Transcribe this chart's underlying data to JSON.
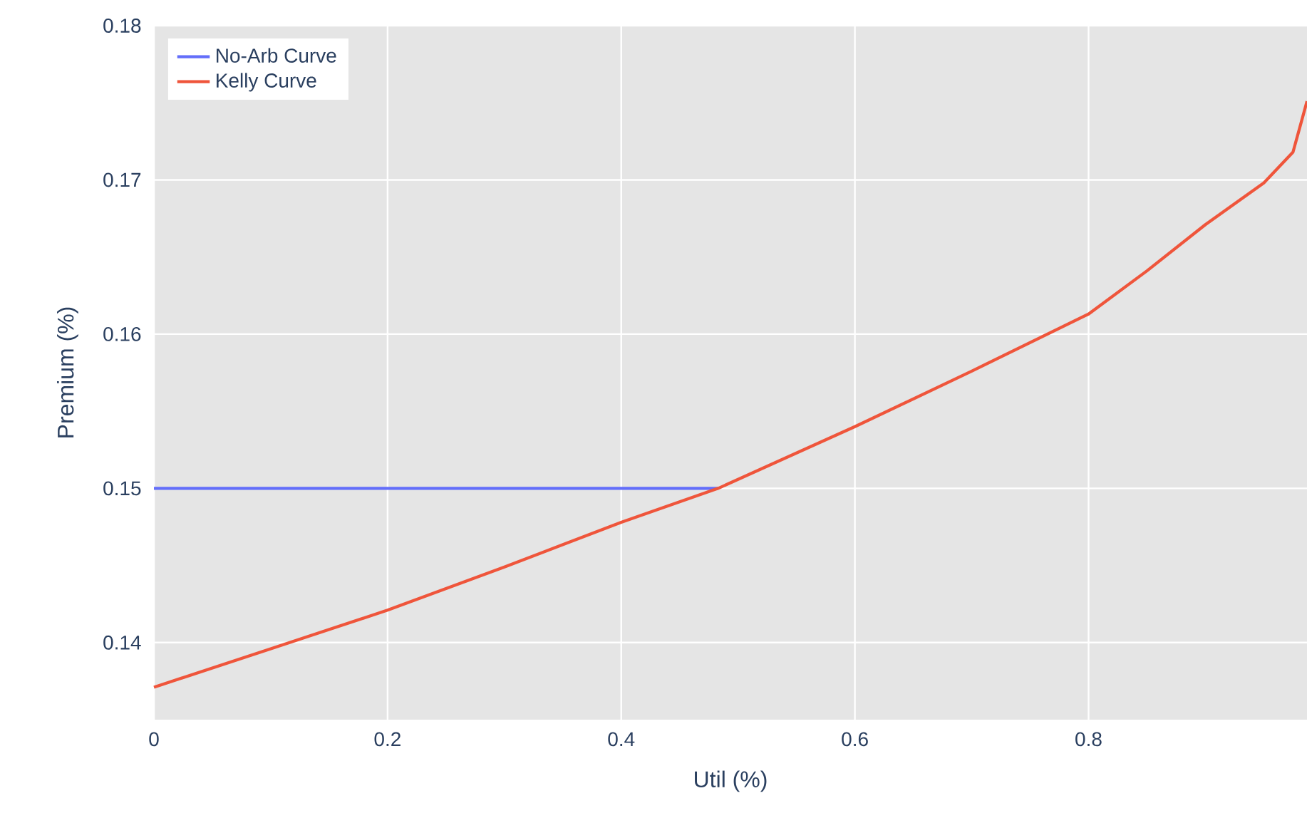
{
  "chart_data": {
    "type": "line",
    "xlabel": "Util (%)",
    "ylabel": "Premium (%)",
    "x": [
      0,
      0.1,
      0.2,
      0.3,
      0.4,
      0.483,
      0.6,
      0.7,
      0.8,
      0.85,
      0.9,
      0.95,
      0.975,
      0.987
    ],
    "series": [
      {
        "name": "No-Arb Curve",
        "color": "#636efa",
        "values": [
          0.15,
          0.15,
          0.15,
          0.15,
          0.15,
          0.15,
          null,
          null,
          null,
          null,
          null,
          null,
          null,
          null
        ]
      },
      {
        "name": "Kelly Curve",
        "color": "#ef553b",
        "values": [
          0.1371,
          0.1396,
          0.1421,
          0.1449,
          0.1478,
          0.15,
          0.154,
          0.1576,
          0.1613,
          0.1641,
          0.1671,
          0.1698,
          0.1718,
          0.1751
        ]
      }
    ],
    "xlim": [
      0,
      0.987
    ],
    "ylim": [
      0.135,
      0.18
    ],
    "xticks": [
      0,
      0.2,
      0.4,
      0.6,
      0.8
    ],
    "yticks": [
      0.14,
      0.15,
      0.16,
      0.17,
      0.18
    ],
    "grid": true,
    "legend": "top left",
    "marker": "none",
    "line_style": "solid"
  }
}
